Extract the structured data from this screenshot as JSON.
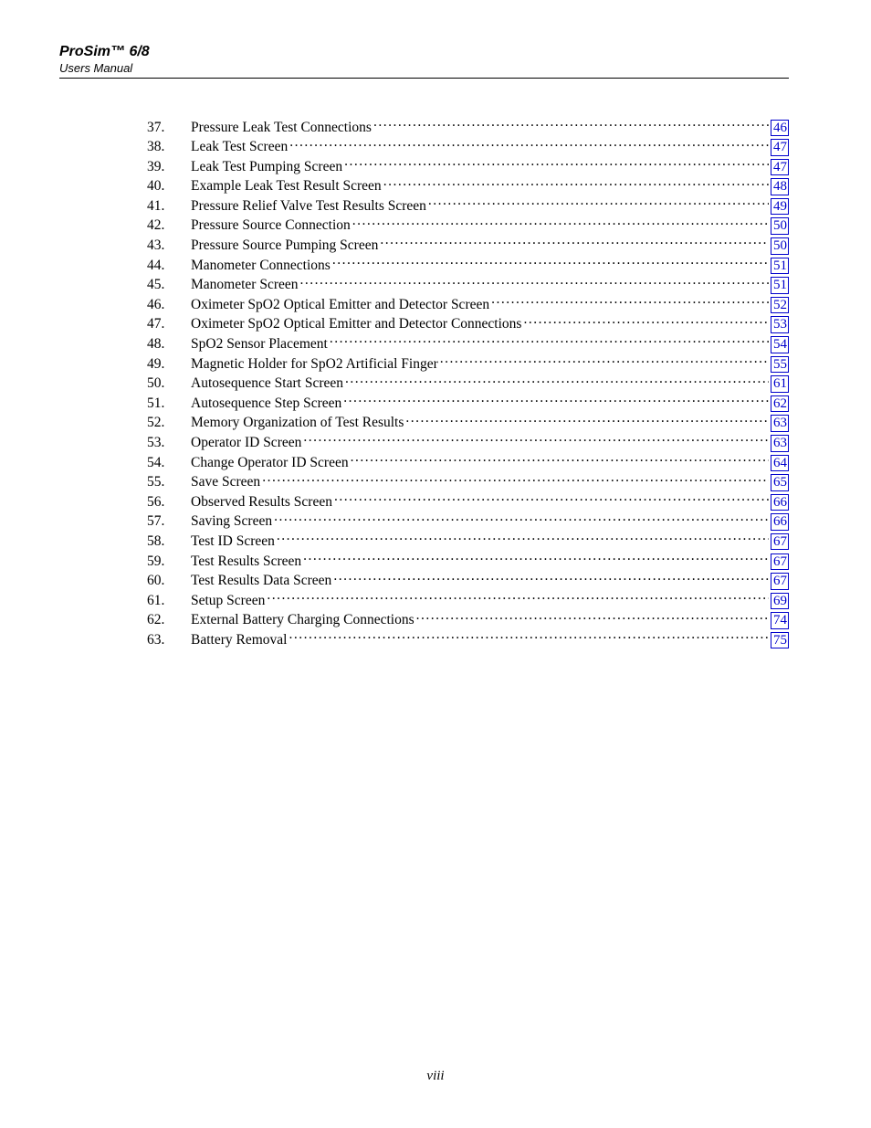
{
  "header": {
    "title": "ProSim™ 6/8",
    "subtitle": "Users Manual"
  },
  "toc": {
    "entries": [
      {
        "num": "37.",
        "title": "Pressure Leak Test Connections",
        "page": "46"
      },
      {
        "num": "38.",
        "title": "Leak Test Screen",
        "page": "47"
      },
      {
        "num": "39.",
        "title": "Leak Test Pumping Screen",
        "page": "47"
      },
      {
        "num": "40.",
        "title": "Example Leak Test Result Screen",
        "page": "48"
      },
      {
        "num": "41.",
        "title": "Pressure Relief Valve Test Results Screen",
        "page": "49"
      },
      {
        "num": "42.",
        "title": "Pressure Source Connection",
        "page": "50"
      },
      {
        "num": "43.",
        "title": "Pressure Source Pumping Screen",
        "page": "50"
      },
      {
        "num": "44.",
        "title": "Manometer Connections",
        "page": "51"
      },
      {
        "num": "45.",
        "title": "Manometer Screen",
        "page": "51"
      },
      {
        "num": "46.",
        "title": "Oximeter SpO2 Optical Emitter and Detector Screen",
        "page": "52"
      },
      {
        "num": "47.",
        "title": "Oximeter SpO2 Optical Emitter and Detector Connections",
        "page": "53"
      },
      {
        "num": "48.",
        "title": "SpO2 Sensor Placement",
        "page": "54"
      },
      {
        "num": "49.",
        "title": "Magnetic Holder for SpO2 Artificial Finger",
        "page": "55"
      },
      {
        "num": "50.",
        "title": "Autosequence Start Screen",
        "page": "61"
      },
      {
        "num": "51.",
        "title": "Autosequence Step Screen",
        "page": "62"
      },
      {
        "num": "52.",
        "title": "Memory Organization of Test Results",
        "page": "63"
      },
      {
        "num": "53.",
        "title": "Operator ID Screen",
        "page": "63"
      },
      {
        "num": "54.",
        "title": "Change Operator ID Screen",
        "page": "64"
      },
      {
        "num": "55.",
        "title": "Save Screen",
        "page": "65"
      },
      {
        "num": "56.",
        "title": "Observed Results Screen",
        "page": "66"
      },
      {
        "num": "57.",
        "title": "Saving Screen",
        "page": "66"
      },
      {
        "num": "58.",
        "title": "Test ID Screen",
        "page": "67"
      },
      {
        "num": "59.",
        "title": "Test Results Screen",
        "page": "67"
      },
      {
        "num": "60.",
        "title": "Test Results Data Screen",
        "page": "67"
      },
      {
        "num": "61.",
        "title": "Setup Screen",
        "page": "69"
      },
      {
        "num": "62.",
        "title": "External Battery Charging Connections",
        "page": "74"
      },
      {
        "num": "63.",
        "title": "Battery Removal",
        "page": "75"
      }
    ]
  },
  "pageNumber": "viii",
  "style": {
    "link_color": "#0000cc",
    "text_color": "#000000",
    "background": "#ffffff"
  }
}
